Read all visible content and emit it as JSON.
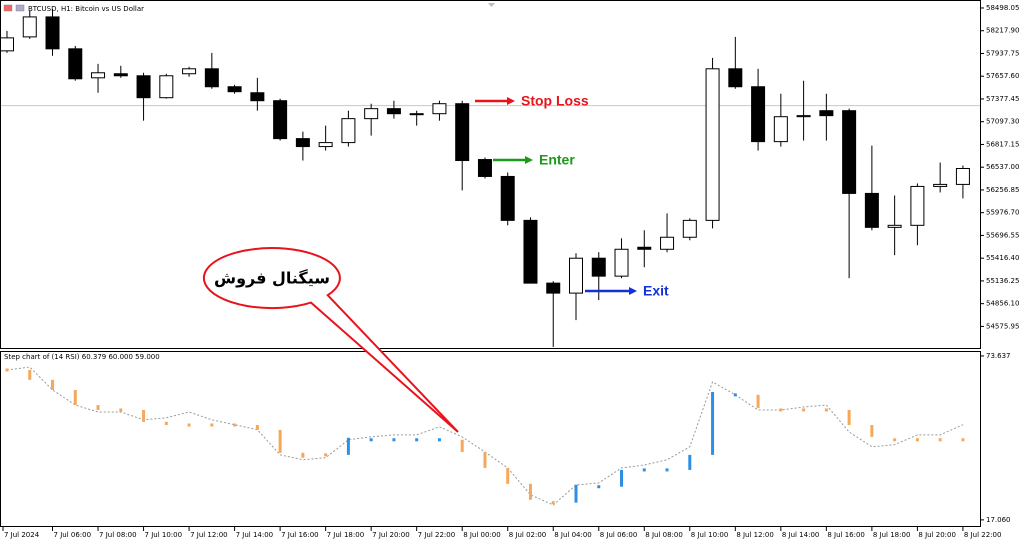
{
  "chart_data": [
    {
      "type": "candlestick",
      "title": "BTCUSD, H1: Bitcoin vs US Dollar",
      "categories": [
        "7 Jul 2024",
        null,
        "7 Jul 06:00",
        null,
        "7 Jul 08:00",
        null,
        "7 Jul 10:00",
        null,
        "7 Jul 12:00",
        null,
        "7 Jul 14:00",
        null,
        "7 Jul 16:00",
        null,
        "7 Jul 18:00",
        null,
        "7 Jul 20:00",
        null,
        "7 Jul 22:00",
        null,
        "8 Jul 00:00",
        null,
        "8 Jul 02:00",
        null,
        "8 Jul 04:00",
        null,
        "8 Jul 06:00",
        null,
        "8 Jul 08:00",
        null,
        "8 Jul 10:00",
        null,
        "8 Jul 12:00",
        null,
        "8 Jul 14:00",
        null,
        "8 Jul 16:00",
        null,
        "8 Jul 18:00",
        null,
        "8 Jul 20:00",
        null,
        "8 Jul 22:00"
      ],
      "open": [
        57970,
        58142,
        58388,
        57995,
        57638,
        57688,
        57663,
        57393,
        57688,
        57749,
        57528,
        57454,
        57356,
        56889,
        56791,
        56840,
        57135,
        57258,
        57196,
        57196,
        57319,
        56631,
        56423,
        55882,
        55109,
        54986,
        55416,
        55195,
        55551,
        55526,
        55674,
        55882,
        57749,
        57528,
        56852,
        57159,
        57233,
        57233,
        56214,
        55796,
        55821,
        56300,
        56325
      ],
      "high": [
        58216,
        58461,
        58486,
        58031,
        57810,
        57786,
        57700,
        57688,
        57774,
        57945,
        57553,
        57638,
        57381,
        56975,
        57049,
        57233,
        57319,
        57356,
        57233,
        57356,
        57356,
        56656,
        56472,
        55919,
        55133,
        55477,
        55490,
        55661,
        55760,
        55968,
        55907,
        57884,
        58142,
        57749,
        57442,
        57602,
        57442,
        57258,
        56803,
        56189,
        56337,
        56595,
        56558
      ],
      "low": [
        57945,
        58117,
        57909,
        57602,
        57454,
        57638,
        57110,
        57381,
        57651,
        57503,
        57442,
        57233,
        56865,
        56619,
        56742,
        56791,
        56926,
        57135,
        57049,
        57110,
        56251,
        56398,
        55821,
        55109,
        54323,
        54654,
        54900,
        55170,
        55305,
        55490,
        55637,
        55784,
        57503,
        56742,
        56791,
        56865,
        56865,
        55170,
        55760,
        55453,
        55576,
        56226,
        56153
      ],
      "close": [
        58130,
        58388,
        57995,
        57626,
        57700,
        57663,
        57393,
        57663,
        57749,
        57528,
        57467,
        57356,
        56889,
        56791,
        56840,
        57135,
        57258,
        57196,
        57184,
        57319,
        56619,
        56423,
        55882,
        55109,
        54986,
        55416,
        55195,
        55526,
        55526,
        55674,
        55882,
        57749,
        57528,
        56852,
        57159,
        57172,
        57172,
        56214,
        55796,
        55821,
        56300,
        56325,
        56521
      ],
      "up_color": "#ffffff",
      "down_color": "#000000",
      "ylim": [
        54310,
        58584
      ],
      "yticks": [
        {
          "value": 58498.05,
          "label": "58498.05"
        },
        {
          "value": 58217.9,
          "label": "58217.90"
        },
        {
          "value": 57937.75,
          "label": "57937.75"
        },
        {
          "value": 57657.6,
          "label": "57657.60"
        },
        {
          "value": 57377.45,
          "label": "57377.45"
        },
        {
          "value": 57097.3,
          "label": "57097.30"
        },
        {
          "value": 56817.15,
          "label": "56817.15"
        },
        {
          "value": 56537,
          "label": "56537.00"
        },
        {
          "value": 56256.85,
          "label": "56256.85"
        },
        {
          "value": 55976.7,
          "label": "55976.70"
        },
        {
          "value": 55696.55,
          "label": "55696.55"
        },
        {
          "value": 55416.4,
          "label": "55416.40"
        },
        {
          "value": 55136.25,
          "label": "55136.25"
        },
        {
          "value": 54856.1,
          "label": "54856.10"
        },
        {
          "value": 54575.95,
          "label": "54575.95"
        }
      ],
      "price_line": 57295,
      "annotations": [
        {
          "text": "Stop Loss",
          "color": "#e8141c"
        },
        {
          "text": "Enter",
          "color": "#1a9a1a"
        },
        {
          "text": "Exit",
          "color": "#1431d6"
        }
      ],
      "callout": "سیگنال فروش"
    },
    {
      "type": "step",
      "title": "Step chart of (14 RSI) 60.379 60.000 59.000",
      "ylim": [
        14.6,
        75.0
      ],
      "yticks": [
        {
          "value": 73.637,
          "label": "73.637"
        },
        {
          "value": 17.06,
          "label": "17.060"
        }
      ],
      "line": {
        "color": "#999999",
        "values": [
          68.8,
          69.8,
          61.9,
          56.7,
          54.3,
          54.3,
          51.6,
          52.3,
          54.3,
          51.6,
          49.9,
          48.2,
          39.5,
          37.8,
          38.5,
          44.7,
          45.7,
          46.4,
          46.4,
          49.2,
          45.7,
          40.5,
          35.0,
          25.7,
          22.2,
          29.1,
          29.8,
          35.0,
          36.0,
          37.8,
          42.3,
          64.7,
          60.2,
          55.0,
          55.0,
          56.0,
          56.7,
          47.4,
          42.3,
          43.0,
          46.4,
          46.4,
          49.9
        ]
      },
      "steps": {
        "values": [
          68.8,
          65.4,
          61.9,
          56.7,
          55.0,
          55.0,
          50.9,
          49.8,
          49.8,
          49.8,
          49.8,
          48.1,
          40.2,
          38.5,
          39.5,
          45.4,
          44.7,
          44.7,
          44.7,
          44.7,
          40.5,
          35.0,
          29.5,
          24.0,
          23.0,
          29.2,
          28.5,
          34.3,
          34.3,
          34.3,
          39.5,
          61.2,
          60.2,
          55.7,
          55.0,
          55.0,
          55.0,
          49.8,
          45.7,
          44.7,
          44.7,
          44.7,
          44.7
        ],
        "colors": [
          "#f5a85a",
          "#f5a85a",
          "#f5a85a",
          "#f5a85a",
          "#f5a85a",
          "#f5a85a",
          "#f5a85a",
          "#f5a85a",
          "#f5a85a",
          "#f5a85a",
          "#f5a85a",
          "#f5a85a",
          "#f5a85a",
          "#f5a85a",
          "#f5a85a",
          "#2d8fe3",
          "#2d8fe3",
          "#2d8fe3",
          "#2d8fe3",
          "#2d8fe3",
          "#f5a85a",
          "#f5a85a",
          "#f5a85a",
          "#f5a85a",
          "#f5a85a",
          "#2d8fe3",
          "#2d8fe3",
          "#2d8fe3",
          "#2d8fe3",
          "#2d8fe3",
          "#2d8fe3",
          "#2d8fe3",
          "#2d8fe3",
          "#f5a85a",
          "#f5a85a",
          "#f5a85a",
          "#f5a85a",
          "#f5a85a",
          "#f5a85a",
          "#f5a85a",
          "#f5a85a",
          "#f5a85a",
          "#f5a85a"
        ]
      }
    }
  ]
}
